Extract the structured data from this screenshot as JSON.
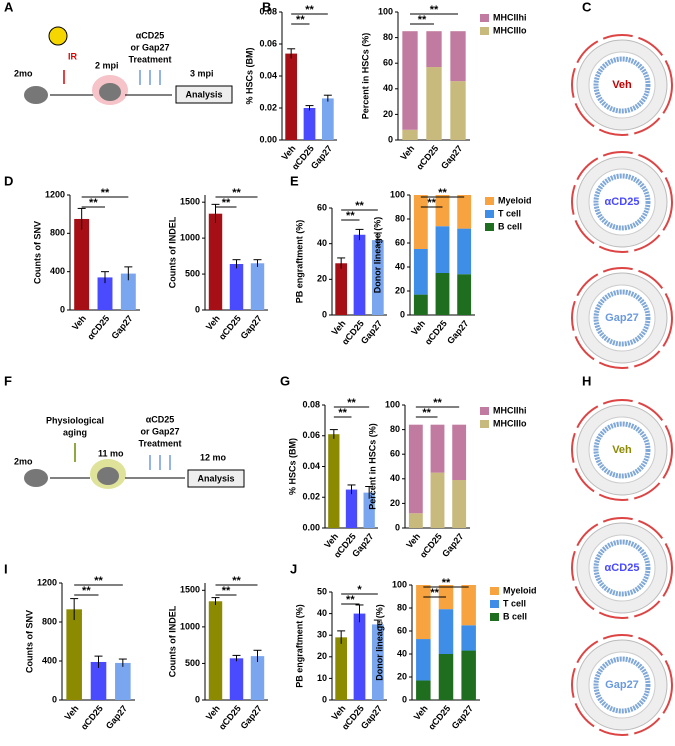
{
  "panel_labels": [
    "A",
    "B",
    "C",
    "D",
    "E",
    "F",
    "G",
    "H",
    "I",
    "J"
  ],
  "schematics": {
    "A": {
      "start": "2mo",
      "exposure": [
        "IR"
      ],
      "timepoint": "2 mpi",
      "treatment": [
        "αCD25",
        "or Gap27",
        "Treatment"
      ],
      "end": "3 mpi",
      "readout": "Analysis"
    },
    "F": {
      "start": "2mo",
      "exposure": [
        "Physiological",
        "aging"
      ],
      "timepoint": "11 mo",
      "treatment": [
        "αCD25",
        "or Gap27",
        "Treatment"
      ],
      "end": "12 mo",
      "readout": "Analysis"
    }
  },
  "circos": {
    "C": [
      "Veh",
      "αCD25",
      "Gap27"
    ],
    "H": [
      "Veh",
      "αCD25",
      "Gap27"
    ]
  },
  "chart_data": [
    {
      "type": "bar",
      "ylabel": "% HSCs (BM)",
      "categories": [
        "Veh",
        "αCD25",
        "Gap27"
      ],
      "values": [
        0.054,
        0.02,
        0.026
      ],
      "errors": [
        0.003,
        0.0015,
        0.002
      ],
      "colors": [
        "#a50f15",
        "#4a4aff",
        "#7aa6f0"
      ],
      "ylim": [
        0,
        0.08
      ],
      "yticks": [
        {
          "value": 0,
          "label": "0.00"
        },
        {
          "value": 0.02,
          "label": "0.02"
        },
        {
          "value": 0.04,
          "label": "0.04"
        },
        {
          "value": 0.06,
          "label": "0.06"
        },
        {
          "value": 0.08,
          "label": "0.08"
        }
      ],
      "significance": [
        {
          "label": "**",
          "between": [
            "Veh",
            "αCD25"
          ]
        },
        {
          "label": "**",
          "between": [
            "Veh",
            "Gap27"
          ]
        }
      ]
    },
    {
      "type": "bar",
      "stacked": true,
      "ylabel": "Percent in HSCs (%)",
      "categories": [
        "Veh",
        "αCD25",
        "Gap27"
      ],
      "series": [
        {
          "name": "MHCIIlo",
          "color": "#c8b97d",
          "values": [
            8,
            57,
            46
          ]
        },
        {
          "name": "MHCIIhi",
          "color": "#c27ba0",
          "values": [
            77,
            28,
            39
          ]
        }
      ],
      "ylim": [
        0,
        100
      ],
      "yticks": [
        0,
        20,
        40,
        60,
        80,
        100
      ],
      "significance": [
        {
          "label": "**",
          "between": [
            "Veh",
            "αCD25"
          ]
        },
        {
          "label": "**",
          "between": [
            "Veh",
            "Gap27"
          ]
        }
      ]
    },
    {
      "type": "bar",
      "ylabel": "Counts of SNV",
      "categories": [
        "Veh",
        "αCD25",
        "Gap27"
      ],
      "values": [
        950,
        340,
        380
      ],
      "errors": [
        110,
        60,
        70
      ],
      "colors": [
        "#a50f15",
        "#4a4aff",
        "#7aa6f0"
      ],
      "ylim": [
        0,
        1200
      ],
      "yticks": [
        0,
        400,
        800,
        1200
      ],
      "significance": [
        {
          "label": "**",
          "between": [
            "Veh",
            "αCD25"
          ]
        },
        {
          "label": "**",
          "between": [
            "Veh",
            "Gap27"
          ]
        }
      ]
    },
    {
      "type": "bar",
      "ylabel": "Counts of INDEL",
      "categories": [
        "Veh",
        "αCD25",
        "Gap27"
      ],
      "values": [
        1340,
        640,
        650
      ],
      "errors": [
        130,
        60,
        50
      ],
      "colors": [
        "#a50f15",
        "#4a4aff",
        "#7aa6f0"
      ],
      "ylim": [
        0,
        1600
      ],
      "yticks": [
        0,
        500,
        1000,
        1500
      ],
      "significance": [
        {
          "label": "**",
          "between": [
            "Veh",
            "αCD25"
          ]
        },
        {
          "label": "**",
          "between": [
            "Veh",
            "Gap27"
          ]
        }
      ]
    },
    {
      "type": "bar",
      "ylabel": "PB engraftment (%)",
      "categories": [
        "Veh",
        "αCD25",
        "Gap27"
      ],
      "values": [
        29,
        45,
        42
      ],
      "errors": [
        3,
        3,
        4
      ],
      "colors": [
        "#a50f15",
        "#4a4aff",
        "#7aa6f0"
      ],
      "ylim": [
        0,
        60
      ],
      "yticks": [
        0,
        20,
        40,
        60
      ],
      "significance": [
        {
          "label": "**",
          "between": [
            "Veh",
            "αCD25"
          ]
        },
        {
          "label": "**",
          "between": [
            "Veh",
            "Gap27"
          ]
        }
      ]
    },
    {
      "type": "bar",
      "stacked": true,
      "ylabel": "Donor lineage (%)",
      "categories": [
        "Veh",
        "αCD25",
        "Gap27"
      ],
      "series": [
        {
          "name": "B cell",
          "color": "#1f6e1f",
          "values": [
            17,
            35,
            34
          ]
        },
        {
          "name": "T cell",
          "color": "#3e8ee8",
          "values": [
            38,
            39,
            38
          ]
        },
        {
          "name": "Myeloid",
          "color": "#f7a440",
          "values": [
            45,
            26,
            28
          ]
        }
      ],
      "ylim": [
        0,
        100
      ],
      "yticks": [
        0,
        20,
        40,
        60,
        80,
        100
      ],
      "significance": [
        {
          "label": "**",
          "between": [
            "Veh",
            "αCD25"
          ]
        },
        {
          "label": "**",
          "between": [
            "Veh",
            "Gap27"
          ]
        }
      ]
    },
    {
      "type": "bar",
      "ylabel": "% HSCs (BM)",
      "categories": [
        "Veh",
        "αCD25",
        "Gap27"
      ],
      "values": [
        0.061,
        0.025,
        0.023
      ],
      "errors": [
        0.003,
        0.003,
        0.004
      ],
      "colors": [
        "#8c8a00",
        "#4a4aff",
        "#7aa6f0"
      ],
      "ylim": [
        0,
        0.08
      ],
      "yticks": [
        {
          "value": 0,
          "label": "0.00"
        },
        {
          "value": 0.02,
          "label": "0.02"
        },
        {
          "value": 0.04,
          "label": "0.04"
        },
        {
          "value": 0.06,
          "label": "0.06"
        },
        {
          "value": 0.08,
          "label": "0.08"
        }
      ],
      "significance": [
        {
          "label": "**",
          "between": [
            "Veh",
            "αCD25"
          ]
        },
        {
          "label": "**",
          "between": [
            "Veh",
            "Gap27"
          ]
        }
      ]
    },
    {
      "type": "bar",
      "stacked": true,
      "ylabel": "Percent in HSCs (%)",
      "categories": [
        "Veh",
        "αCD25",
        "Gap27"
      ],
      "series": [
        {
          "name": "MHCIIlo",
          "color": "#c8b97d",
          "values": [
            12,
            45,
            39
          ]
        },
        {
          "name": "MHCIIhi",
          "color": "#c27ba0",
          "values": [
            72,
            39,
            45
          ]
        }
      ],
      "ylim": [
        0,
        100
      ],
      "yticks": [
        0,
        20,
        40,
        60,
        80,
        100
      ],
      "significance": [
        {
          "label": "**",
          "between": [
            "Veh",
            "αCD25"
          ]
        },
        {
          "label": "**",
          "between": [
            "Veh",
            "Gap27"
          ]
        }
      ]
    },
    {
      "type": "bar",
      "ylabel": "Counts of SNV",
      "categories": [
        "Veh",
        "αCD25",
        "Gap27"
      ],
      "values": [
        930,
        390,
        380
      ],
      "errors": [
        110,
        60,
        40
      ],
      "colors": [
        "#8c8a00",
        "#4a4aff",
        "#7aa6f0"
      ],
      "ylim": [
        0,
        1200
      ],
      "yticks": [
        0,
        400,
        800,
        1200
      ],
      "significance": [
        {
          "label": "**",
          "between": [
            "Veh",
            "αCD25"
          ]
        },
        {
          "label": "**",
          "between": [
            "Veh",
            "Gap27"
          ]
        }
      ]
    },
    {
      "type": "bar",
      "ylabel": "Counts of INDEL",
      "categories": [
        "Veh",
        "αCD25",
        "Gap27"
      ],
      "values": [
        1350,
        570,
        600
      ],
      "errors": [
        50,
        40,
        80
      ],
      "colors": [
        "#8c8a00",
        "#4a4aff",
        "#7aa6f0"
      ],
      "ylim": [
        0,
        1600
      ],
      "yticks": [
        0,
        500,
        1000,
        1500
      ],
      "significance": [
        {
          "label": "**",
          "between": [
            "Veh",
            "αCD25"
          ]
        },
        {
          "label": "**",
          "between": [
            "Veh",
            "Gap27"
          ]
        }
      ]
    },
    {
      "type": "bar",
      "ylabel": "PB engraftment (%)",
      "categories": [
        "Veh",
        "αCD25",
        "Gap27"
      ],
      "values": [
        29,
        40,
        35
      ],
      "errors": [
        3,
        4,
        2
      ],
      "colors": [
        "#8c8a00",
        "#4a4aff",
        "#7aa6f0"
      ],
      "ylim": [
        0,
        50
      ],
      "yticks": [
        0,
        10,
        20,
        30,
        40,
        50
      ],
      "significance": [
        {
          "label": "**",
          "between": [
            "Veh",
            "αCD25"
          ]
        },
        {
          "label": "*",
          "between": [
            "Veh",
            "Gap27"
          ]
        }
      ]
    },
    {
      "type": "bar",
      "stacked": true,
      "ylabel": "Donor lineage (%)",
      "categories": [
        "Veh",
        "αCD25",
        "Gap27"
      ],
      "series": [
        {
          "name": "B cell",
          "color": "#1f6e1f",
          "values": [
            17,
            40,
            43
          ]
        },
        {
          "name": "T cell",
          "color": "#3e8ee8",
          "values": [
            36,
            39,
            22
          ]
        },
        {
          "name": "Myeloid",
          "color": "#f7a440",
          "values": [
            47,
            21,
            35
          ]
        }
      ],
      "ylim": [
        0,
        100
      ],
      "yticks": [
        0,
        20,
        40,
        60,
        80,
        100
      ],
      "significance": [
        {
          "label": "**",
          "between": [
            "Veh",
            "αCD25"
          ]
        },
        {
          "label": "**",
          "between": [
            "Veh",
            "Gap27"
          ]
        }
      ]
    }
  ]
}
